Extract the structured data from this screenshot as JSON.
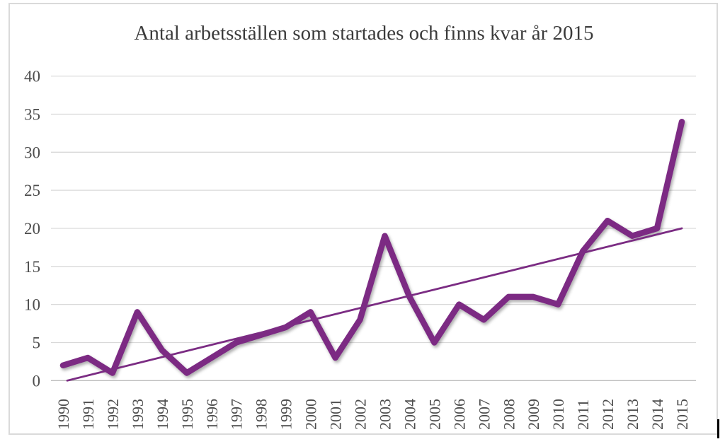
{
  "chart_data": {
    "type": "line",
    "title": "Antal arbetsställen som startades och finns kvar år 2015",
    "categories": [
      "1990",
      "1991",
      "1992",
      "1993",
      "1994",
      "1995",
      "1996",
      "1997",
      "1998",
      "1999",
      "2000",
      "2001",
      "2002",
      "2003",
      "2004",
      "2005",
      "2006",
      "2007",
      "2008",
      "2009",
      "2010",
      "2011",
      "2012",
      "2013",
      "2014",
      "2015"
    ],
    "series": [
      {
        "name": "data",
        "kind": "line",
        "values": [
          2,
          3,
          1,
          9,
          4,
          1,
          3,
          5,
          6,
          7,
          9,
          3,
          8,
          19,
          11,
          5,
          10,
          8,
          11,
          11,
          10,
          17,
          21,
          19,
          20,
          34
        ]
      },
      {
        "name": "trend",
        "kind": "trendline",
        "start_value": 0,
        "end_value": 20
      }
    ],
    "xlabel": "",
    "ylabel": "",
    "ylim": [
      0,
      40
    ],
    "yticks": [
      0,
      5,
      10,
      15,
      20,
      25,
      30,
      35,
      40
    ],
    "grid": true,
    "legend_position": "none",
    "colors": {
      "line": "#7B2C83",
      "trendline": "#7B2C83",
      "gridline": "#D9D9D9",
      "axis_line": "#BFBFBF",
      "tick_label": "#4D4D4D",
      "title": "#3A3A3A",
      "frame_border": "#DADADA"
    }
  },
  "editor": {
    "caret_visible": true
  }
}
